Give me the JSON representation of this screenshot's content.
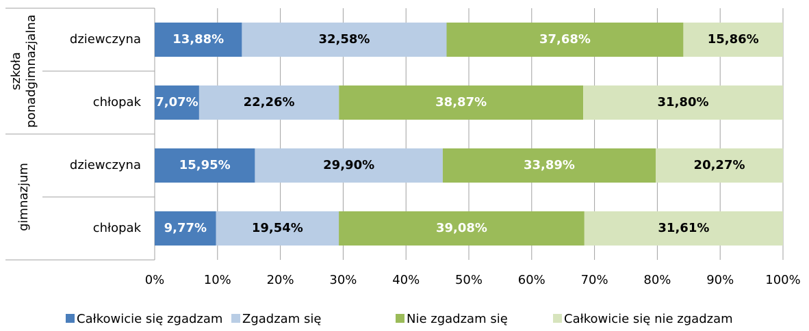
{
  "chart_data": {
    "type": "stacked-bar-horizontal",
    "groups": [
      {
        "label": [
          "szkoła",
          "ponadgimnazjalna"
        ],
        "categories": [
          "dziewczyna",
          "chłopak"
        ]
      },
      {
        "label": [
          "gimnazjum"
        ],
        "categories": [
          "dziewczyna",
          "chłopak"
        ]
      }
    ],
    "series": [
      {
        "name": "Całkowicie się zgadzam",
        "color": "#4a7ebb",
        "label_color": "#ffffff",
        "values": [
          13.88,
          7.07,
          15.95,
          9.77
        ],
        "value_labels": [
          "13,88%",
          "7,07%",
          "15,95%",
          "9,77%"
        ]
      },
      {
        "name": "Zgadzam się",
        "color": "#b9cde5",
        "label_color": "#000000",
        "values": [
          32.58,
          22.26,
          29.9,
          19.54
        ],
        "value_labels": [
          "32,58%",
          "22,26%",
          "29,90%",
          "19,54%"
        ]
      },
      {
        "name": "Nie zgadzam się",
        "color": "#9bbb59",
        "label_color": "#ffffff",
        "values": [
          37.68,
          38.87,
          33.89,
          39.08
        ],
        "value_labels": [
          "37,68%",
          "38,87%",
          "33,89%",
          "39,08%"
        ]
      },
      {
        "name": "Całkowicie się nie zgadzam",
        "color": "#d7e4bd",
        "label_color": "#000000",
        "values": [
          15.86,
          31.8,
          20.27,
          31.61
        ],
        "value_labels": [
          "15,86%",
          "31,80%",
          "20,27%",
          "31,61%"
        ]
      }
    ],
    "xlim": [
      0,
      100
    ],
    "xticks": [
      {
        "value": 0,
        "label": "0%"
      },
      {
        "value": 10,
        "label": "10%"
      },
      {
        "value": 20,
        "label": "20%"
      },
      {
        "value": 30,
        "label": "30%"
      },
      {
        "value": 40,
        "label": "40%"
      },
      {
        "value": 50,
        "label": "50%"
      },
      {
        "value": 60,
        "label": "60%"
      },
      {
        "value": 70,
        "label": "70%"
      },
      {
        "value": 80,
        "label": "80%"
      },
      {
        "value": 90,
        "label": "90%"
      },
      {
        "value": 100,
        "label": "100%"
      }
    ],
    "grid": true,
    "legend": "bottom"
  }
}
